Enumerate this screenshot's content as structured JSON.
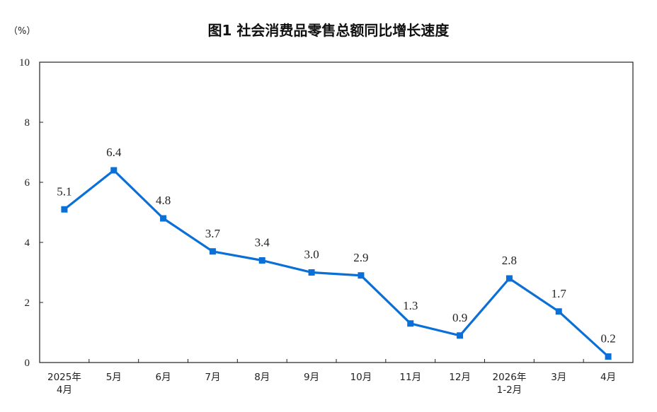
{
  "chart_data": {
    "type": "line",
    "title": "图1  社会消费品零售总额同比增长速度",
    "unit": "（%）",
    "ylim": [
      0,
      10
    ],
    "y_ticks": [
      "0",
      "2",
      "4",
      "6",
      "8",
      "10"
    ],
    "grid": false,
    "legend": "none",
    "categories": [
      [
        "2025年",
        "4月"
      ],
      [
        "5月"
      ],
      [
        "6月"
      ],
      [
        "7月"
      ],
      [
        "8月"
      ],
      [
        "9月"
      ],
      [
        "10月"
      ],
      [
        "11月"
      ],
      [
        "12月"
      ],
      [
        "2026年",
        "1-2月"
      ],
      [
        "3月"
      ],
      [
        "4月"
      ]
    ],
    "series": [
      {
        "values": [
          5.1,
          6.4,
          4.8,
          3.7,
          3.4,
          3.0,
          2.9,
          1.3,
          0.9,
          2.8,
          1.7,
          0.2
        ],
        "labels": [
          "5.1",
          "6.4",
          "4.8",
          "3.7",
          "3.4",
          "3.0",
          "2.9",
          "1.3",
          "0.9",
          "2.8",
          "1.7",
          "0.2"
        ],
        "color": "#0a6fd6"
      }
    ]
  }
}
